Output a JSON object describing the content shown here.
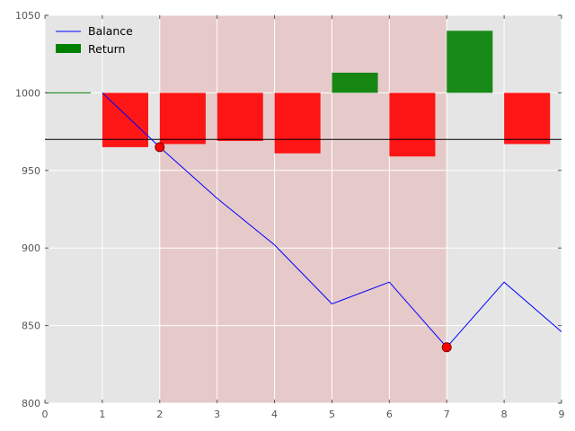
{
  "chart_data": {
    "type": "bar",
    "grid": true,
    "legend_position": "top-left",
    "xlim": [
      0,
      9
    ],
    "ylim": [
      800,
      1050
    ],
    "x_ticks": [
      0,
      1,
      2,
      3,
      4,
      5,
      6,
      7,
      8,
      9
    ],
    "y_ticks": [
      800,
      850,
      900,
      950,
      1000,
      1050
    ],
    "baseline": 1000,
    "reference_line": 970,
    "shaded_region": {
      "x0": 2,
      "x1": 7,
      "color": "#e8a0a0"
    },
    "series": [
      {
        "name": "Balance",
        "type": "line",
        "color": "#0000ff",
        "x": [
          1,
          2,
          3,
          4,
          5,
          6,
          7,
          8,
          9
        ],
        "values": [
          1000,
          965,
          932,
          902,
          864,
          878,
          836,
          878,
          846
        ]
      },
      {
        "name": "Return",
        "type": "bar",
        "colors": {
          "positive": "#008000",
          "negative": "#ff0000"
        },
        "x": [
          0,
          1,
          2,
          3,
          4,
          5,
          6,
          7,
          8
        ],
        "values": [
          0,
          -35,
          -33,
          -31,
          -39,
          13,
          -41,
          40,
          -33
        ]
      }
    ],
    "markers": [
      {
        "x": 2,
        "y": 965,
        "color": "#ff0000"
      },
      {
        "x": 7,
        "y": 836,
        "color": "#ff0000"
      }
    ]
  }
}
